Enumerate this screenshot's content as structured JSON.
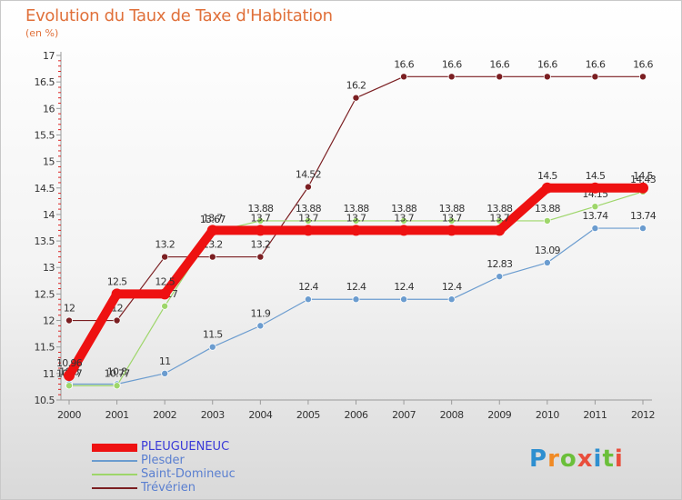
{
  "header": {
    "title": "Evolution du Taux de Taxe d'Habitation",
    "subtitle": "(en %)"
  },
  "logo": {
    "letters": [
      "P",
      "r",
      "o",
      "x",
      "i",
      "t",
      "i"
    ]
  },
  "chart_data": {
    "type": "line",
    "x": [
      "2000",
      "2001",
      "2002",
      "2003",
      "2004",
      "2005",
      "2006",
      "2007",
      "2008",
      "2009",
      "2010",
      "2011",
      "2012"
    ],
    "ylim": [
      10.5,
      17
    ],
    "yticks": [
      "10.5",
      "11",
      "11.5",
      "12",
      "12.5",
      "13",
      "13.5",
      "14",
      "14.5",
      "15",
      "15.5",
      "16",
      "16.5",
      "17"
    ],
    "grid": false,
    "legend_position": "bottom-left",
    "series": [
      {
        "name": "Trévérien",
        "color": "#7b1f22",
        "values": [
          12,
          12,
          13.2,
          13.2,
          13.2,
          14.52,
          16.2,
          16.6,
          16.6,
          16.6,
          16.6,
          16.6,
          16.6
        ],
        "labels": [
          "12",
          "12",
          "13.2",
          "13.2",
          "13.2",
          "14.52",
          "16.2",
          "16.6",
          "16.6",
          "16.6",
          "16.6",
          "16.6",
          "16.6"
        ]
      },
      {
        "name": "Plesder",
        "color": "#6b9ccf",
        "values": [
          10.8,
          10.8,
          11,
          11.5,
          11.9,
          12.4,
          12.4,
          12.4,
          12.4,
          12.83,
          13.09,
          13.74,
          13.74
        ],
        "labels": [
          "10.8",
          "10.8",
          "11",
          "11.5",
          "11.9",
          "12.4",
          "12.4",
          "12.4",
          "12.4",
          "12.83",
          "13.09",
          "13.74",
          "13.74"
        ]
      },
      {
        "name": "Saint-Domineuc",
        "color": "#9ed66a",
        "values": [
          10.77,
          10.77,
          12.27,
          13.67,
          13.88,
          13.88,
          13.88,
          13.88,
          13.88,
          13.88,
          13.88,
          14.15,
          14.43
        ],
        "labels": [
          "10.77",
          "10.77",
          "12.27",
          "13.67",
          "13.88",
          "13.88",
          "13.88",
          "13.88",
          "13.88",
          "13.88",
          "13.88",
          "14.15",
          "14.43"
        ]
      },
      {
        "name": "PLEUGUENEUC",
        "color": "#ee1111",
        "values": [
          10.96,
          12.5,
          12.5,
          13.7,
          13.7,
          13.7,
          13.7,
          13.7,
          13.7,
          13.7,
          14.5,
          14.5,
          14.5
        ],
        "labels": [
          "10.96",
          "12.5",
          "12.5",
          "13.7",
          "13.7",
          "13.7",
          "13.7",
          "13.7",
          "13.7",
          "13.7",
          "14.5",
          "14.5",
          "14.5"
        ]
      }
    ],
    "legend_order": [
      "PLEUGUENEUC",
      "Plesder",
      "Saint-Domineuc",
      "Trévérien"
    ]
  }
}
